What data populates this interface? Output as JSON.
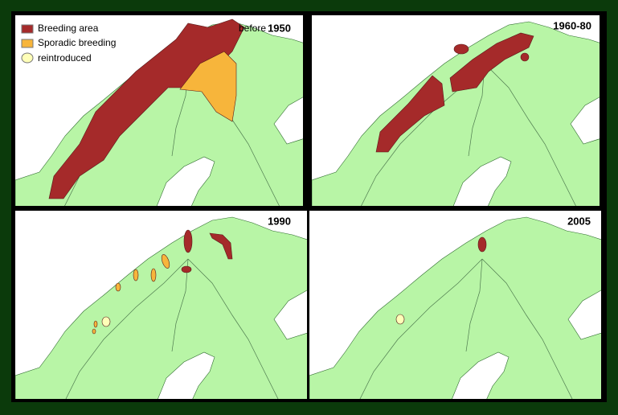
{
  "legend": [
    {
      "label": "Breeding area",
      "color": "#a52a2a"
    },
    {
      "label": "Sporadic breeding",
      "color": "#f7b53b"
    },
    {
      "label": "reintroduced",
      "color": "#ffffb8"
    }
  ],
  "panels": [
    {
      "prefix": "before",
      "label": "1950"
    },
    {
      "label": "1960-80"
    },
    {
      "label": "1990"
    },
    {
      "label": "2005"
    }
  ]
}
